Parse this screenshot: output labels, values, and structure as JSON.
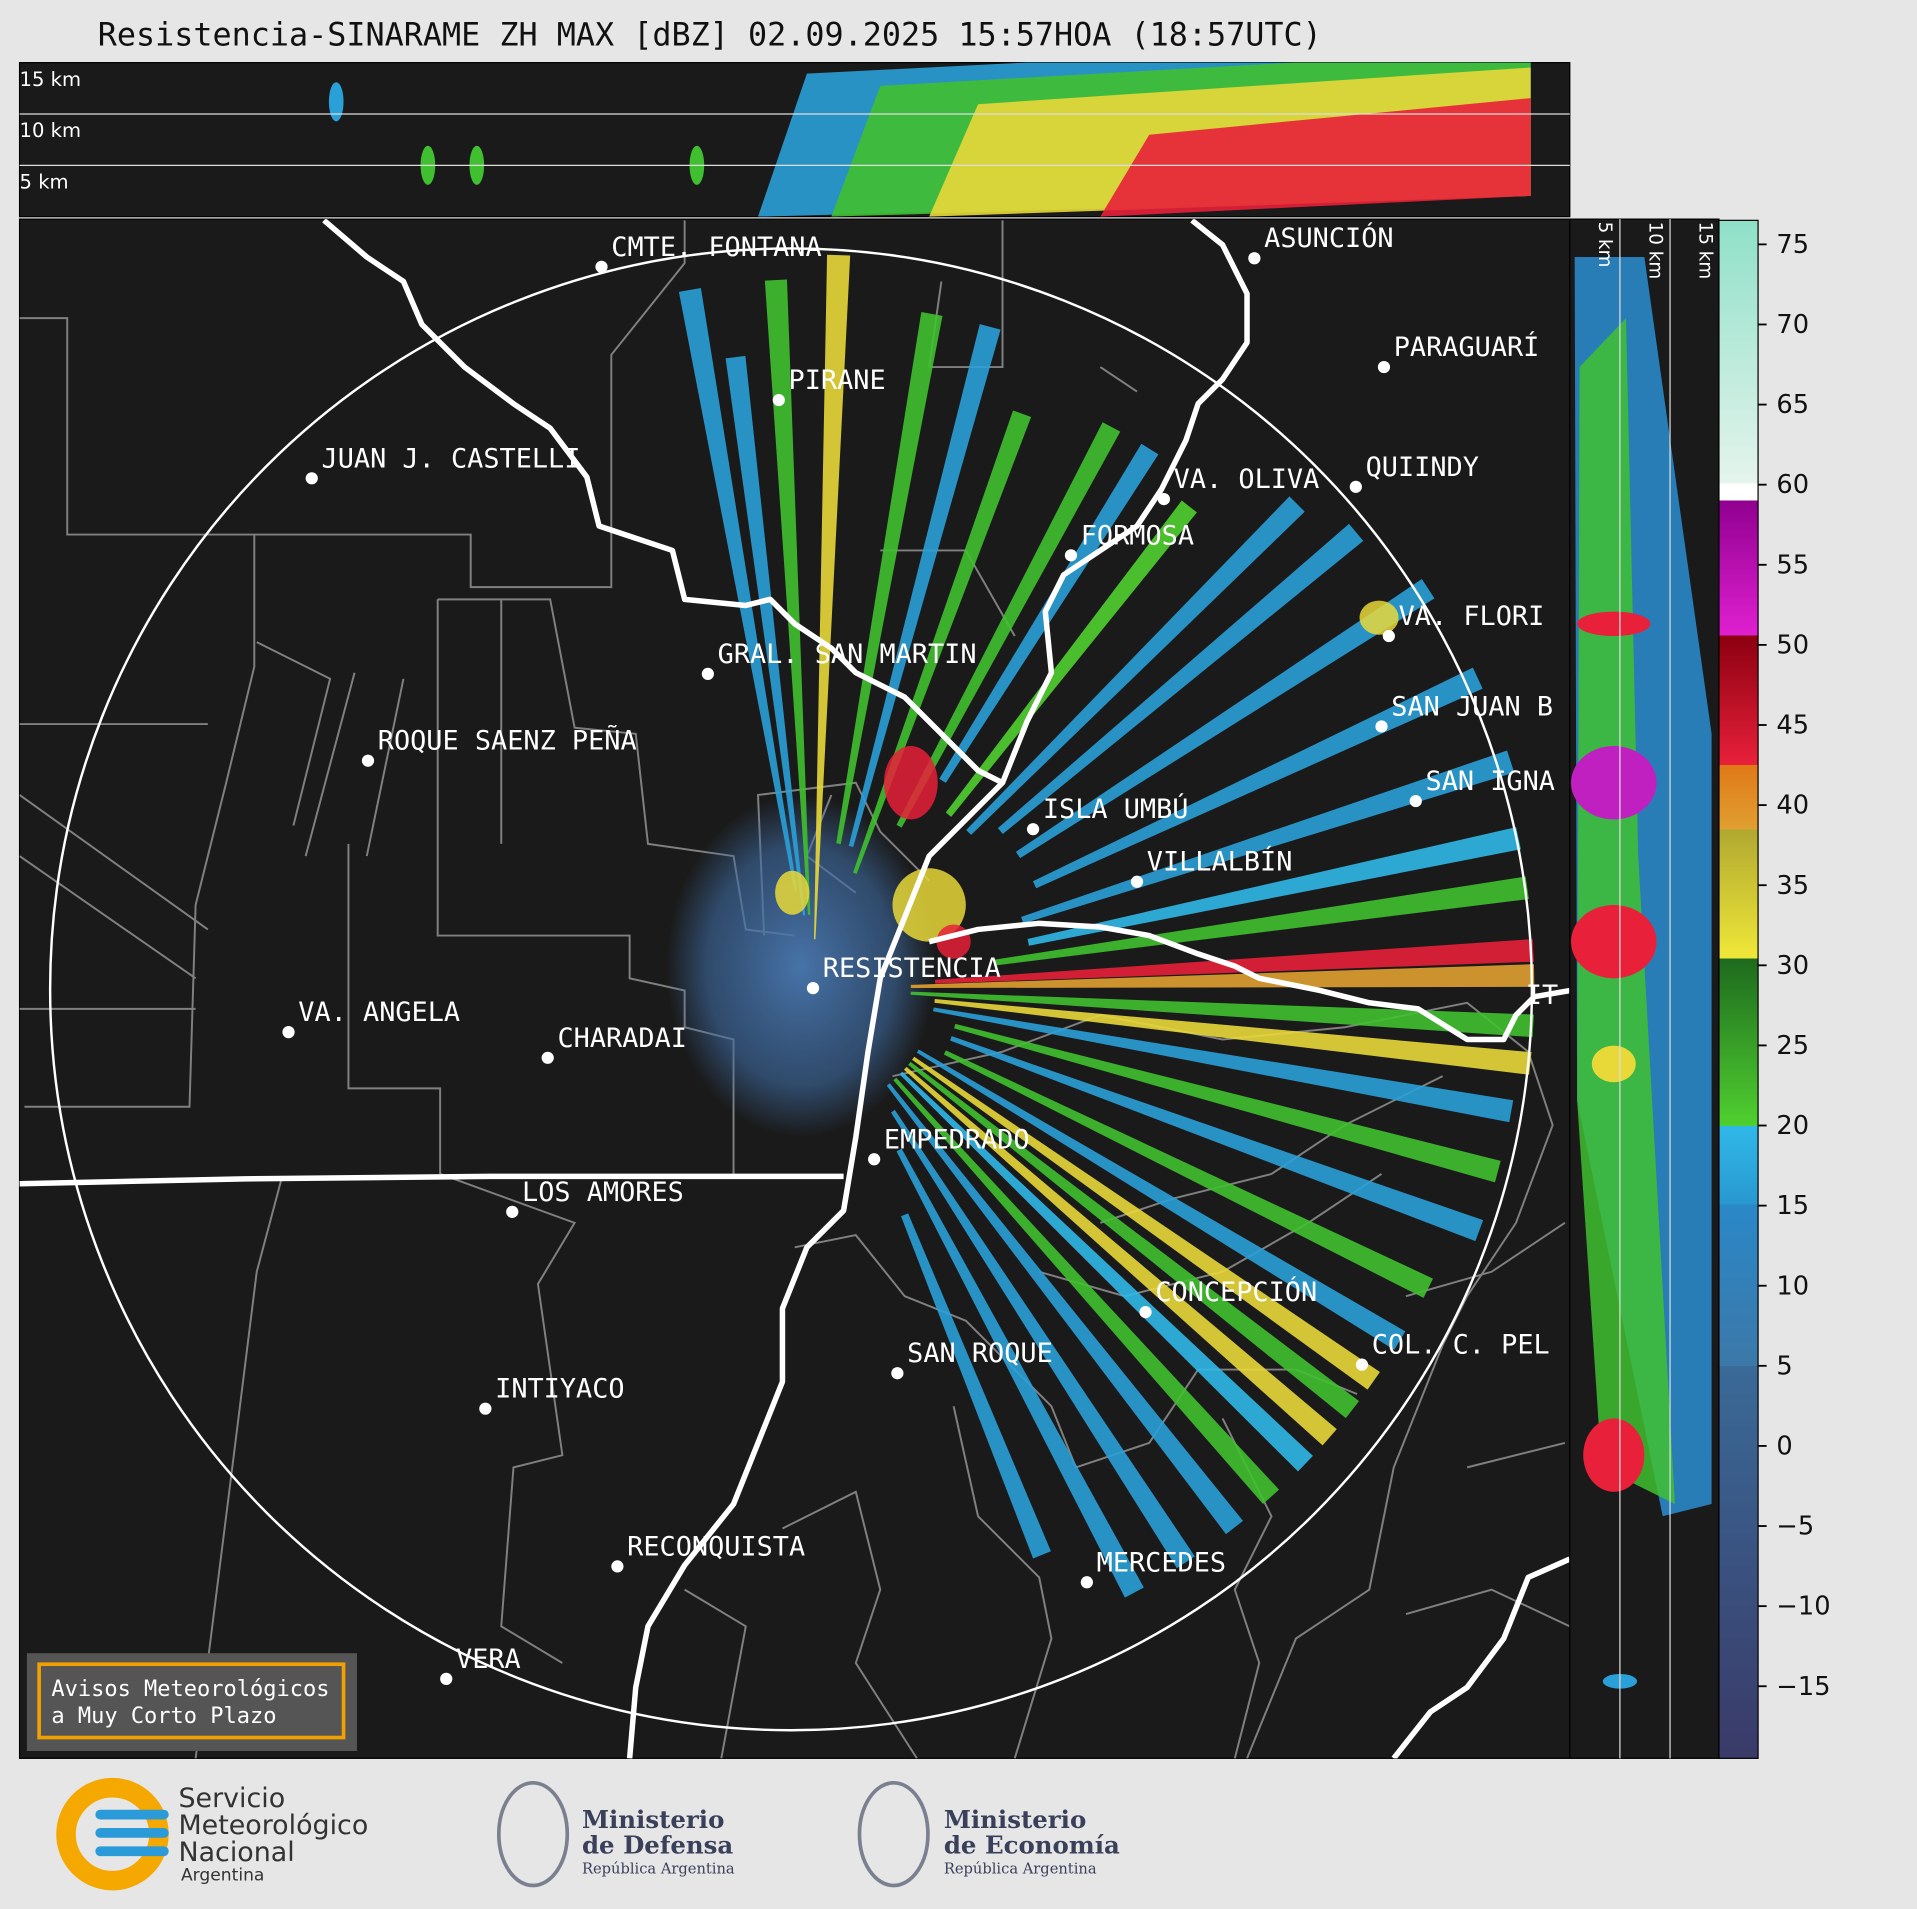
{
  "title": "Resistencia-SINARAME ZH MAX [dBZ] 02.09.2025 15:57HOA (18:57UTC)",
  "vertical_section": {
    "height_labels": [
      "15 km",
      "10 km",
      "5 km"
    ]
  },
  "side_section": {
    "height_labels": [
      "5 km",
      "10 km",
      "15 km"
    ]
  },
  "map": {
    "cities": [
      "CMTE. FONTANA",
      "PIRANE",
      "JUAN J. CASTELLI",
      "ASUNCIÓN",
      "PARAGUARÍ",
      "VA. OLIVA",
      "QUIINDY",
      "FORMOSA",
      "VA. FLORI",
      "GRAL. SAN MARTIN",
      "SAN JUAN B",
      "ROQUE SAENZ PEÑA",
      "SAN IGNA",
      "ISLA UMBÚ",
      "VILLALBÍN",
      "RESISTENCIA",
      "VA. ANGELA",
      "CHARADAI",
      "IT",
      "EMPEDRADO",
      "LOS AMORES",
      "CONCEPCIÓN",
      "COL. C. PEL",
      "SAN ROQUE",
      "INTIYACO",
      "RECONQUISTA",
      "MERCEDES",
      "VERA"
    ],
    "notice": [
      "Avisos Meteorológicos",
      "a Muy Corto Plazo"
    ]
  },
  "colorbar": {
    "ylim": [
      -19.5,
      76.5
    ],
    "yticks": [
      75,
      70,
      65,
      60,
      55,
      50,
      45,
      40,
      35,
      30,
      25,
      20,
      15,
      10,
      5,
      0,
      {
        "value": -5,
        "label": "−5"
      },
      {
        "value": -10,
        "label": "−10"
      },
      {
        "value": -15,
        "label": "−15"
      }
    ]
  },
  "logos": {
    "smn": [
      "Servicio",
      "Meteorológico",
      "Nacional",
      "Argentina"
    ],
    "defensa": [
      "Ministerio",
      "de Defensa",
      "República Argentina"
    ],
    "economia": [
      "Ministerio",
      "de Economía",
      "República Argentina"
    ]
  }
}
